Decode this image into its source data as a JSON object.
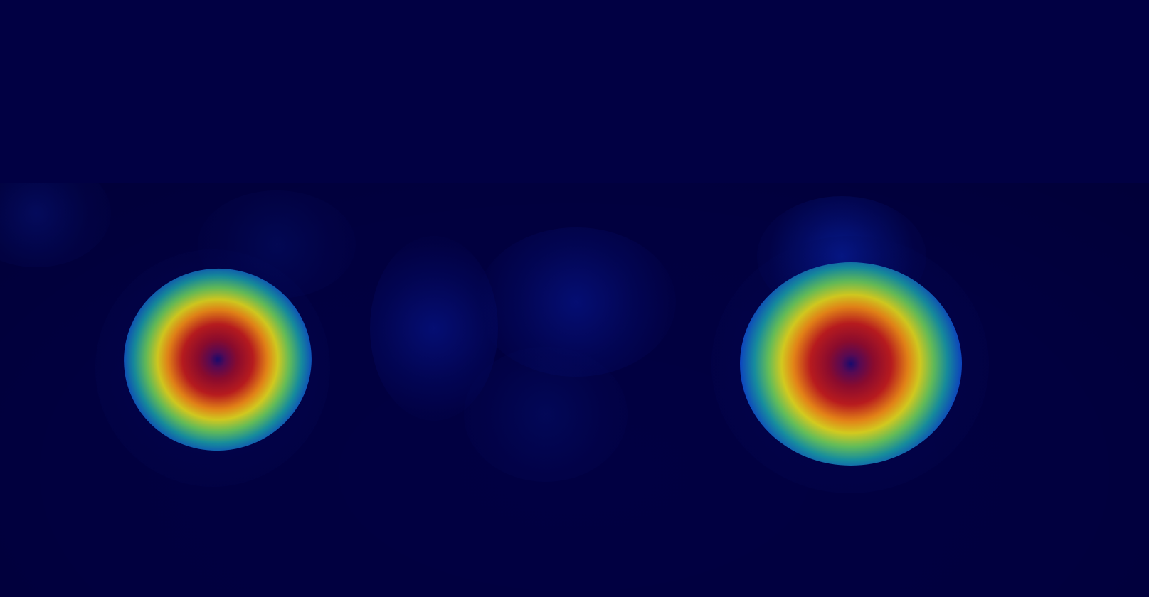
{
  "view": {
    "type": "heatmap-overlay",
    "background_color": "#010042",
    "palette": [
      "#010042",
      "#0822a0",
      "#1790a1",
      "#65c15b",
      "#d8cf20",
      "#e98618",
      "#bd1c1f",
      "#5a0a56"
    ]
  },
  "heatmap": {
    "hotspots": [
      {
        "name": "left-hotspot",
        "intensity": "high"
      },
      {
        "name": "right-hotspot",
        "intensity": "high"
      }
    ],
    "faint_regions": [
      {
        "name": "upper-left-corner",
        "intensity": "low"
      },
      {
        "name": "left-upper",
        "intensity": "low"
      },
      {
        "name": "center-upper",
        "intensity": "low"
      },
      {
        "name": "center-lower",
        "intensity": "low"
      },
      {
        "name": "right-upper",
        "intensity": "low"
      }
    ]
  }
}
